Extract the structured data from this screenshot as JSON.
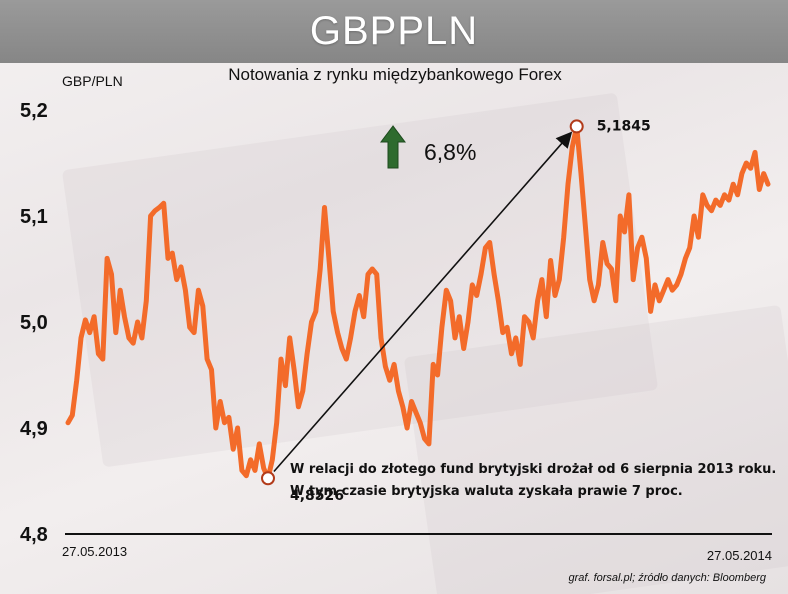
{
  "header": {
    "title": "GBPPLN"
  },
  "chart_data": {
    "type": "line",
    "title": "Notowania z rynku międzybankowego Forex",
    "ylabel": "GBP/PLN",
    "xlabel": "",
    "ylim": [
      4.8,
      5.2
    ],
    "y_ticks": [
      "5,2",
      "5,1",
      "5,0",
      "4,9",
      "4,8"
    ],
    "y_tick_values": [
      5.2,
      5.1,
      5.0,
      4.9,
      4.8
    ],
    "x_start_label": "27.05.2013",
    "x_end_label": "27.05.2014",
    "grid": false,
    "line_color": "#f36b2a",
    "series": [
      {
        "name": "",
        "values": [
          4.905,
          4.912,
          4.945,
          4.985,
          5.002,
          4.99,
          5.005,
          4.97,
          4.965,
          5.06,
          5.045,
          4.99,
          5.03,
          5.005,
          4.985,
          4.98,
          5.0,
          4.985,
          5.02,
          5.1,
          5.105,
          5.108,
          5.112,
          5.06,
          5.065,
          5.04,
          5.052,
          5.03,
          4.995,
          4.99,
          5.03,
          5.015,
          4.965,
          4.955,
          4.9,
          4.925,
          4.905,
          4.91,
          4.88,
          4.9,
          4.86,
          4.855,
          4.87,
          4.86,
          4.885,
          4.862,
          4.8526,
          4.87,
          4.905,
          4.965,
          4.94,
          4.985,
          4.955,
          4.92,
          4.935,
          4.97,
          5.0,
          5.01,
          5.05,
          5.108,
          5.06,
          5.01,
          4.99,
          4.975,
          4.965,
          4.985,
          5.01,
          5.025,
          5.005,
          5.045,
          5.05,
          5.045,
          4.985,
          4.958,
          4.945,
          4.96,
          4.935,
          4.92,
          4.9,
          4.925,
          4.915,
          4.905,
          4.89,
          4.885,
          4.96,
          4.95,
          4.995,
          5.03,
          5.02,
          4.985,
          5.005,
          4.975,
          5.0,
          5.035,
          5.025,
          5.045,
          5.07,
          5.075,
          5.045,
          5.02,
          4.99,
          4.995,
          4.97,
          4.985,
          4.96,
          5.005,
          5.0,
          4.985,
          5.02,
          5.04,
          5.005,
          5.058,
          5.025,
          5.04,
          5.08,
          5.13,
          5.165,
          5.1845,
          5.14,
          5.09,
          5.04,
          5.02,
          5.035,
          5.075,
          5.055,
          5.05,
          5.02,
          5.1,
          5.085,
          5.12,
          5.04,
          5.07,
          5.08,
          5.06,
          5.01,
          5.035,
          5.02,
          5.03,
          5.04,
          5.03,
          5.035,
          5.045,
          5.06,
          5.07,
          5.1,
          5.08,
          5.12,
          5.11,
          5.105,
          5.115,
          5.11,
          5.12,
          5.115,
          5.13,
          5.12,
          5.14,
          5.15,
          5.145,
          5.16,
          5.125,
          5.14,
          5.13
        ]
      }
    ],
    "annotations": {
      "low_label": "4,8526",
      "low_value": 4.8526,
      "high_label": "5,1845",
      "high_value": 5.1845,
      "change_label": "6,8%",
      "change_arrow_color": "#2e6b2e",
      "note_line1": "W relacji do złotego fund brytyjski drożał od 6 sierpnia 2013 roku.",
      "note_line2": "W tym czasie brytyjska waluta zyskała prawie 7 proc."
    },
    "source": "graf. forsal.pl;   źródło danych: Bloomberg"
  }
}
